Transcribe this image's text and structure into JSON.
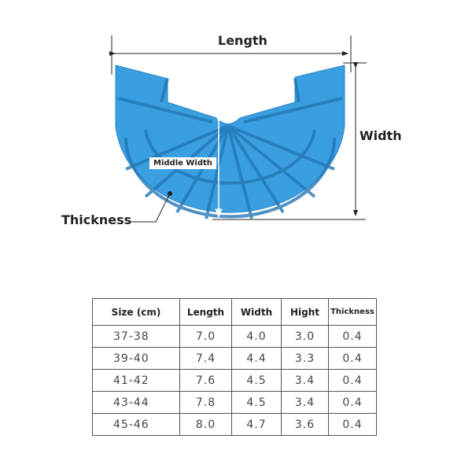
{
  "diagram": {
    "length_label": "Length",
    "width_label": "Width",
    "middle_width_label": "Middle Width",
    "thickness_label": "Thickness",
    "product_color": "#3a9fe0"
  },
  "table": {
    "headers": [
      "Size (cm)",
      "Length",
      "Width",
      "Hight",
      "Thickness"
    ],
    "rows": [
      [
        "37-38",
        "7.0",
        "4.0",
        "3.0",
        "0.4"
      ],
      [
        "39-40",
        "7.4",
        "4.4",
        "3.3",
        "0.4"
      ],
      [
        "41-42",
        "7.6",
        "4.5",
        "3.4",
        "0.4"
      ],
      [
        "43-44",
        "7.8",
        "4.5",
        "3.4",
        "0.4"
      ],
      [
        "45-46",
        "8.0",
        "4.7",
        "3.6",
        "0.4"
      ]
    ]
  }
}
